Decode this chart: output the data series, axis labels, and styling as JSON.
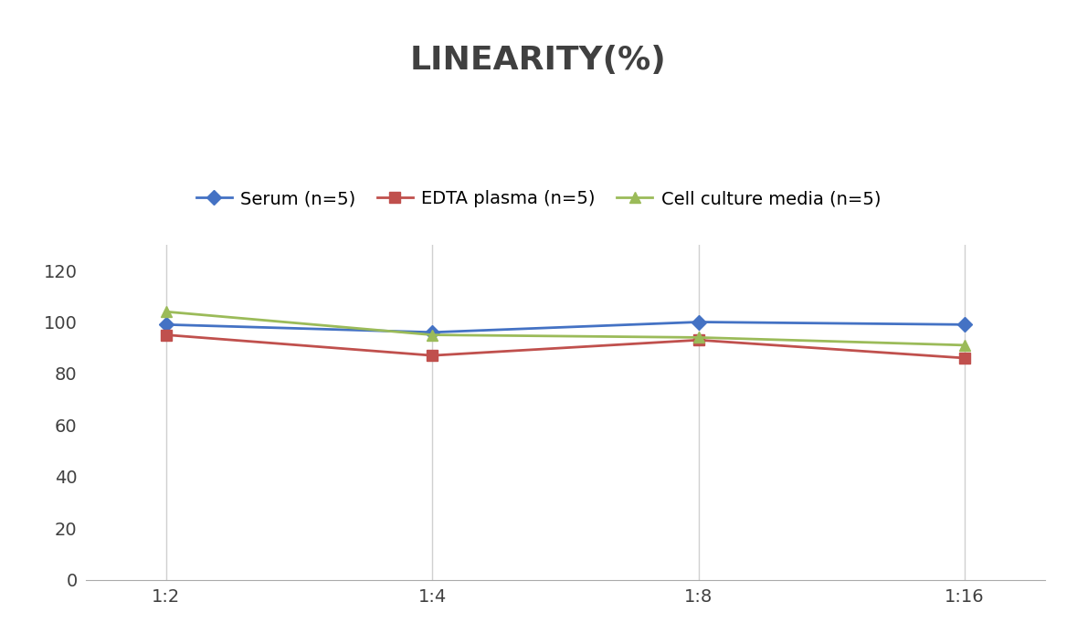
{
  "title": "LINEARITY(%)",
  "x_labels": [
    "1:2",
    "1:4",
    "1:8",
    "1:16"
  ],
  "series": [
    {
      "label": "Serum (n=5)",
      "values": [
        99,
        96,
        100,
        99
      ],
      "color": "#4472C4",
      "marker": "D",
      "markersize": 8
    },
    {
      "label": "EDTA plasma (n=5)",
      "values": [
        95,
        87,
        93,
        86
      ],
      "color": "#C0504D",
      "marker": "s",
      "markersize": 8
    },
    {
      "label": "Cell culture media (n=5)",
      "values": [
        104,
        95,
        94,
        91
      ],
      "color": "#9BBB59",
      "marker": "^",
      "markersize": 8
    }
  ],
  "ylim": [
    0,
    130
  ],
  "yticks": [
    0,
    20,
    40,
    60,
    80,
    100,
    120
  ],
  "title_fontsize": 26,
  "legend_fontsize": 14,
  "tick_fontsize": 14,
  "background_color": "#ffffff",
  "grid_color": "#d0d0d0",
  "linewidth": 2
}
